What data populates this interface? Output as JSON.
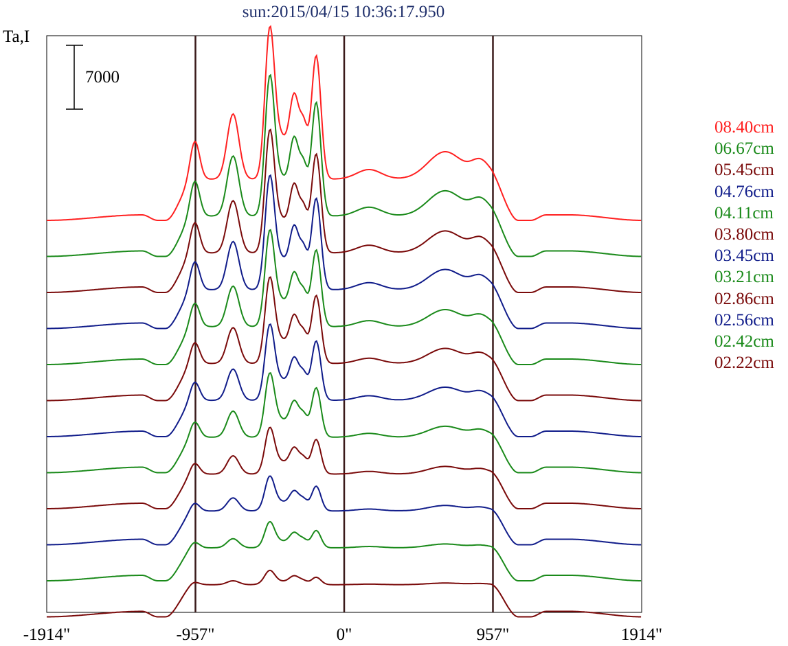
{
  "chart_data": {
    "type": "line",
    "title": "sun:2015/04/15 10:36:17.950",
    "ylabel": "Ta,I",
    "scale_bar_label": "7000",
    "x_tick_labels": [
      "-1914\"",
      "-957\"",
      "0\"",
      "957\"",
      "1914\""
    ],
    "x_ticks": [
      -1914,
      -957,
      0,
      957,
      1914
    ],
    "xlim": [
      -1914,
      1914
    ],
    "vertical_markers": [
      -957,
      0,
      957
    ],
    "colors": {
      "red": "#ff2020",
      "green": "#1a8a1a",
      "maroon": "#7a0a0a",
      "navy": "#101c8a",
      "frame": "#000000",
      "marker": "#3a1a1a",
      "title": "#1f2f6b"
    },
    "series": [
      {
        "name": "08.40cm",
        "color": "#ff2020",
        "amp": 1.0,
        "limb": 1.0
      },
      {
        "name": "06.67cm",
        "color": "#1a8a1a",
        "amp": 0.92,
        "limb": 0.98
      },
      {
        "name": "05.45cm",
        "color": "#7a0a0a",
        "amp": 0.8,
        "limb": 0.96
      },
      {
        "name": "04.76cm",
        "color": "#101c8a",
        "amp": 0.74,
        "limb": 0.94
      },
      {
        "name": "04.11cm",
        "color": "#1a8a1a",
        "amp": 0.62,
        "limb": 0.92
      },
      {
        "name": "03.80cm",
        "color": "#7a0a0a",
        "amp": 0.55,
        "limb": 0.9
      },
      {
        "name": "03.45cm",
        "color": "#101c8a",
        "amp": 0.48,
        "limb": 0.88
      },
      {
        "name": "03.21cm",
        "color": "#1a8a1a",
        "amp": 0.4,
        "limb": 0.86
      },
      {
        "name": "02.86cm",
        "color": "#7a0a0a",
        "amp": 0.28,
        "limb": 0.84
      },
      {
        "name": "02.56cm",
        "color": "#101c8a",
        "amp": 0.2,
        "limb": 0.82
      },
      {
        "name": "02.42cm",
        "color": "#1a8a1a",
        "amp": 0.14,
        "limb": 0.8
      },
      {
        "name": "02.22cm",
        "color": "#7a0a0a",
        "amp": 0.06,
        "limb": 0.78
      }
    ]
  }
}
